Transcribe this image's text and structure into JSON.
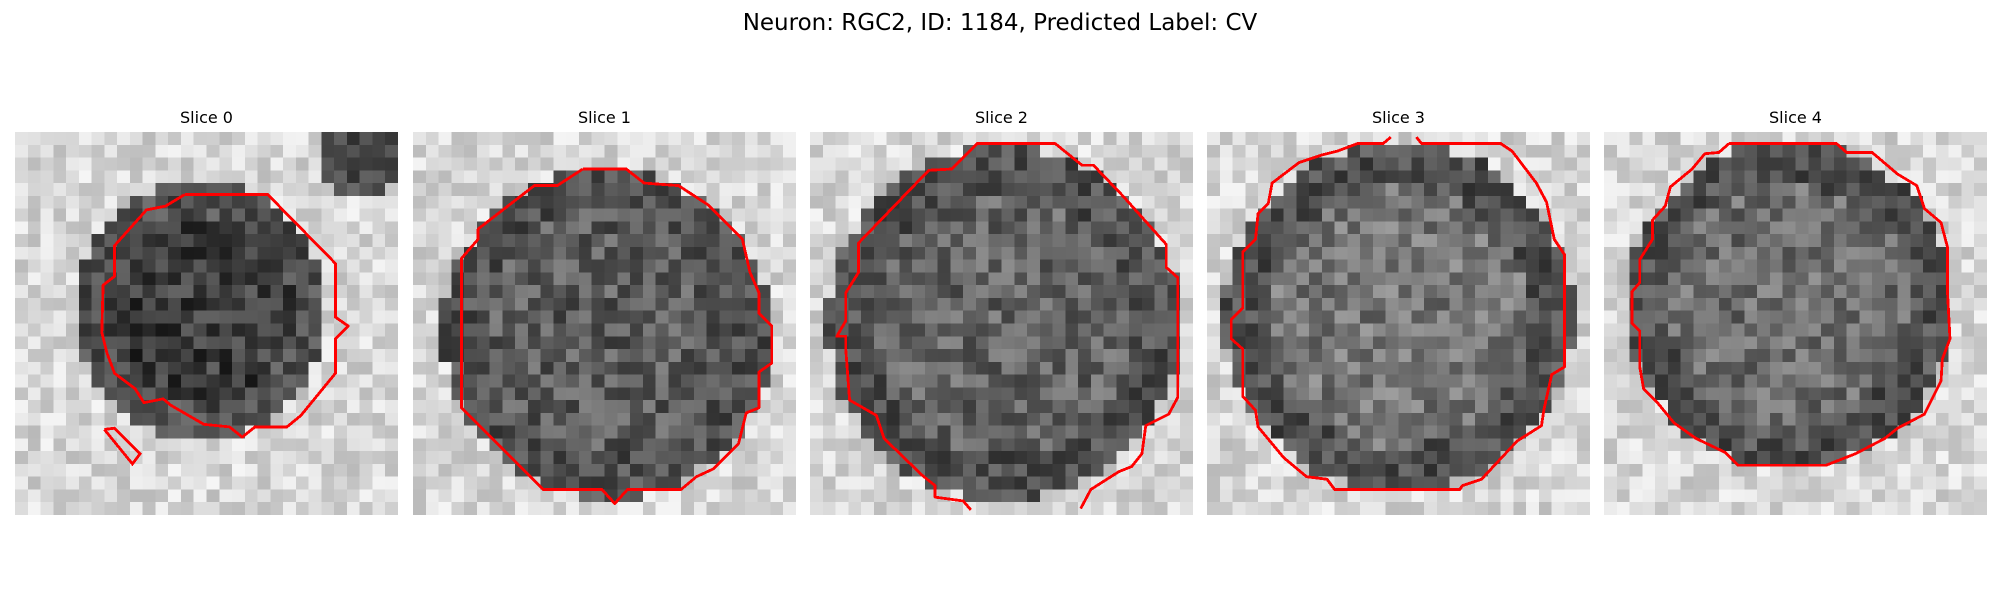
{
  "figure": {
    "title": "Neuron: RGC2, ID: 1184, Predicted Label: CV"
  },
  "panels": [
    {
      "title": "Slice 0",
      "image": "grayscale microscopy patch",
      "contour_color": "#ff0000"
    },
    {
      "title": "Slice 1",
      "image": "grayscale microscopy patch",
      "contour_color": "#ff0000"
    },
    {
      "title": "Slice 2",
      "image": "grayscale microscopy patch",
      "contour_color": "#ff0000"
    },
    {
      "title": "Slice 3",
      "image": "grayscale microscopy patch",
      "contour_color": "#ff0000"
    },
    {
      "title": "Slice 4",
      "image": "grayscale microscopy patch",
      "contour_color": "#ff0000"
    }
  ]
}
